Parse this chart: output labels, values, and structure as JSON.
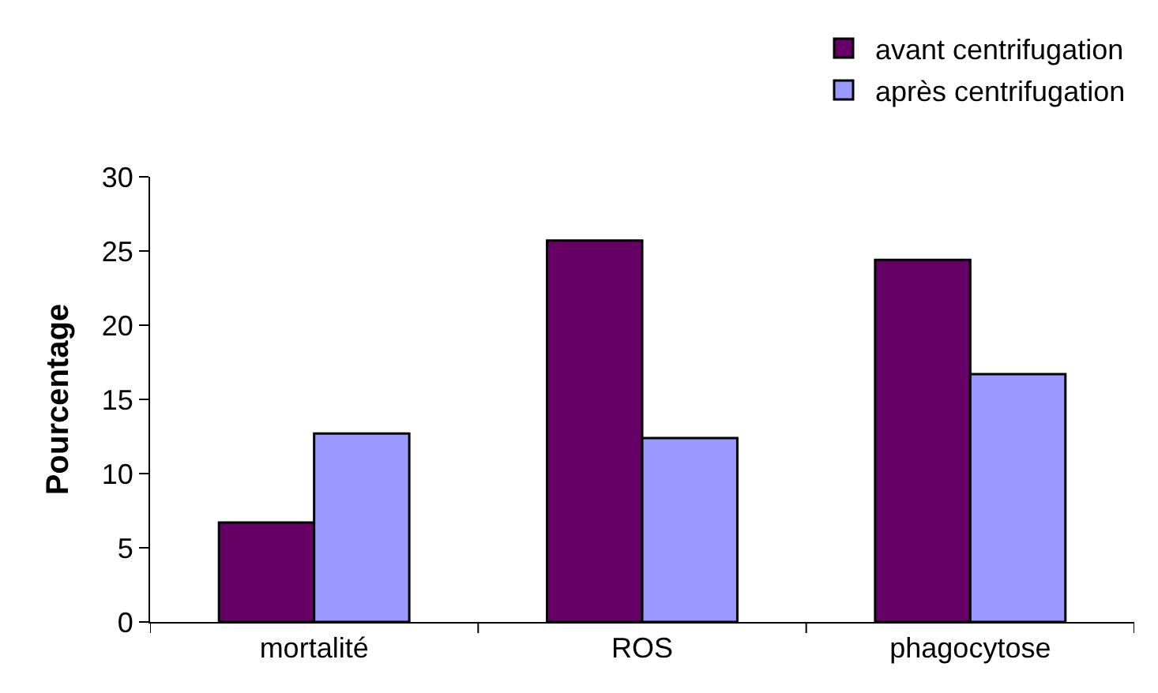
{
  "chart_data": {
    "type": "bar",
    "ylabel": "Pourcentage",
    "categories": [
      "mortalité",
      "ROS",
      "phagocytose"
    ],
    "series": [
      {
        "name": "avant centrifugation",
        "color": "#660066",
        "values": [
          6.7,
          25.7,
          24.4
        ]
      },
      {
        "name": "après centrifugation",
        "color": "#9999ff",
        "values": [
          12.7,
          12.4,
          16.7
        ]
      }
    ],
    "ylim": [
      0,
      30
    ],
    "yticks": [
      0,
      5,
      10,
      15,
      20,
      25,
      30
    ],
    "grid": false,
    "legend": "top right"
  }
}
